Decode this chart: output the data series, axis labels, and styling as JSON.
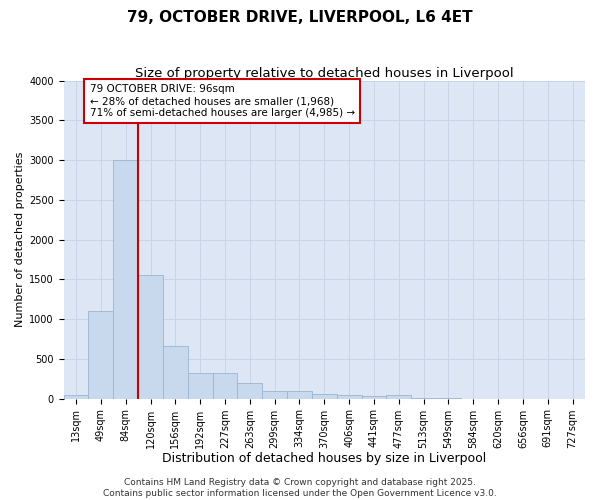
{
  "title": "79, OCTOBER DRIVE, LIVERPOOL, L6 4ET",
  "subtitle": "Size of property relative to detached houses in Liverpool",
  "xlabel": "Distribution of detached houses by size in Liverpool",
  "ylabel": "Number of detached properties",
  "bar_categories": [
    "13sqm",
    "49sqm",
    "84sqm",
    "120sqm",
    "156sqm",
    "192sqm",
    "227sqm",
    "263sqm",
    "299sqm",
    "334sqm",
    "370sqm",
    "406sqm",
    "441sqm",
    "477sqm",
    "513sqm",
    "549sqm",
    "584sqm",
    "620sqm",
    "656sqm",
    "691sqm",
    "727sqm"
  ],
  "bar_values": [
    50,
    1100,
    3000,
    1550,
    660,
    320,
    320,
    200,
    100,
    100,
    55,
    40,
    30,
    40,
    5,
    2,
    1,
    1,
    1,
    1,
    1
  ],
  "bar_color": "#c9d9ed",
  "bar_edgecolor": "#9ab4d0",
  "grid_color": "#c8d4e8",
  "background_color": "#dde6f5",
  "vline_color": "#cc0000",
  "vline_pos": 2.5,
  "ylim": [
    0,
    4000
  ],
  "annotation_text": "79 OCTOBER DRIVE: 96sqm\n← 28% of detached houses are smaller (1,968)\n71% of semi-detached houses are larger (4,985) →",
  "annotation_box_color": "#cc0000",
  "footer_text": "Contains HM Land Registry data © Crown copyright and database right 2025.\nContains public sector information licensed under the Open Government Licence v3.0.",
  "title_fontsize": 11,
  "subtitle_fontsize": 9.5,
  "xlabel_fontsize": 9,
  "ylabel_fontsize": 8,
  "tick_fontsize": 7,
  "annotation_fontsize": 7.5,
  "footer_fontsize": 6.5
}
